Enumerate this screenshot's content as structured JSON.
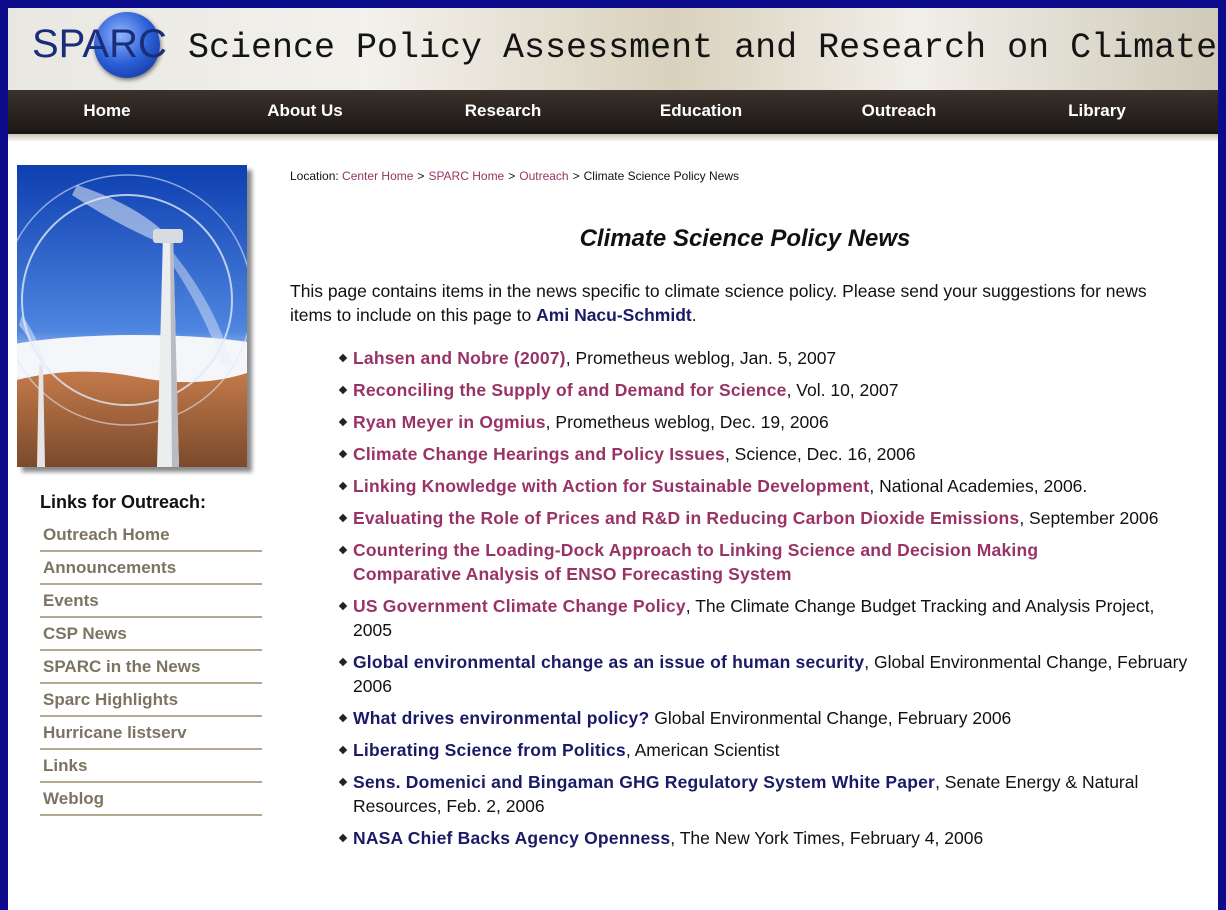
{
  "header": {
    "logo": "SPARC",
    "title": "Science Policy Assessment and Research on Climate"
  },
  "nav": [
    "Home",
    "About Us",
    "Research",
    "Education",
    "Outreach",
    "Library"
  ],
  "breadcrumb": {
    "label": "Location:",
    "separator": ">",
    "links": [
      "Center Home",
      "SPARC Home",
      "Outreach"
    ],
    "current": "Climate Science Policy News"
  },
  "page_title": "Climate Science Policy News",
  "intro": {
    "text": "This page contains items in the news specific to climate science policy. Please send your suggestions for news items to include on this page to",
    "link": "Ami Nacu-Schmidt",
    "end": "."
  },
  "news": [
    {
      "links": [
        "Lahsen and Nobre (2007)"
      ],
      "text": ", Prometheus weblog, Jan. 5, 2007",
      "color": "#993366"
    },
    {
      "links": [
        "Reconciling the Supply of and Demand for Science"
      ],
      "text": ", Vol. 10, 2007",
      "color": "#993366"
    },
    {
      "links": [
        "Ryan Meyer in Ogmius"
      ],
      "text": ", Prometheus weblog, Dec. 19, 2006",
      "color": "#993366"
    },
    {
      "links": [
        "Climate Change Hearings and Policy Issues"
      ],
      "text": ", Science, Dec. 16, 2006",
      "color": "#993366"
    },
    {
      "links": [
        "Linking Knowledge with Action for Sustainable Development"
      ],
      "text": ", National Academies, 2006.",
      "color": "#993366"
    },
    {
      "links": [
        "Evaluating the Role of Prices and R&D in Reducing Carbon Dioxide Emissions"
      ],
      "text": ", September 2006",
      "color": "#993366"
    },
    {
      "links": [
        "Countering the Loading-Dock Approach to Linking Science and Decision Making",
        "Comparative Analysis of ENSO Forecasting System"
      ],
      "color": "#993366"
    },
    {
      "links": [
        "US Government Climate Change Policy"
      ],
      "text": ", The Climate Change Budget Tracking and Analysis Project, 2005",
      "color": "#993366"
    },
    {
      "links": [
        "Global environmental change as an issue of human security"
      ],
      "text": ", Global Environmental Change, February 2006",
      "color": "#1a1a66"
    },
    {
      "links": [
        "What drives environmental policy?"
      ],
      "text": "Global Environmental Change, February 2006",
      "color": "#1a1a66"
    },
    {
      "links": [
        "Liberating Science from Politics"
      ],
      "text": ", American Scientist",
      "color": "#1a1a66"
    },
    {
      "links": [
        "Sens. Domenici and Bingaman GHG Regulatory System White Paper"
      ],
      "text": ", Senate Energy & Natural Resources, Feb. 2, 2006",
      "color": "#1a1a66"
    },
    {
      "links": [
        "NASA Chief Backs Agency Openness"
      ],
      "text": ", The New York Times, February 4, 2006",
      "color": "#1a1a66"
    }
  ],
  "sidebar": {
    "heading": "Links for Outreach:",
    "links": [
      "Outreach Home",
      "Announcements",
      "Events",
      "CSP News",
      "SPARC in the News",
      "Sparc Highlights",
      "Hurricane listserv",
      "Links",
      "Weblog"
    ]
  }
}
